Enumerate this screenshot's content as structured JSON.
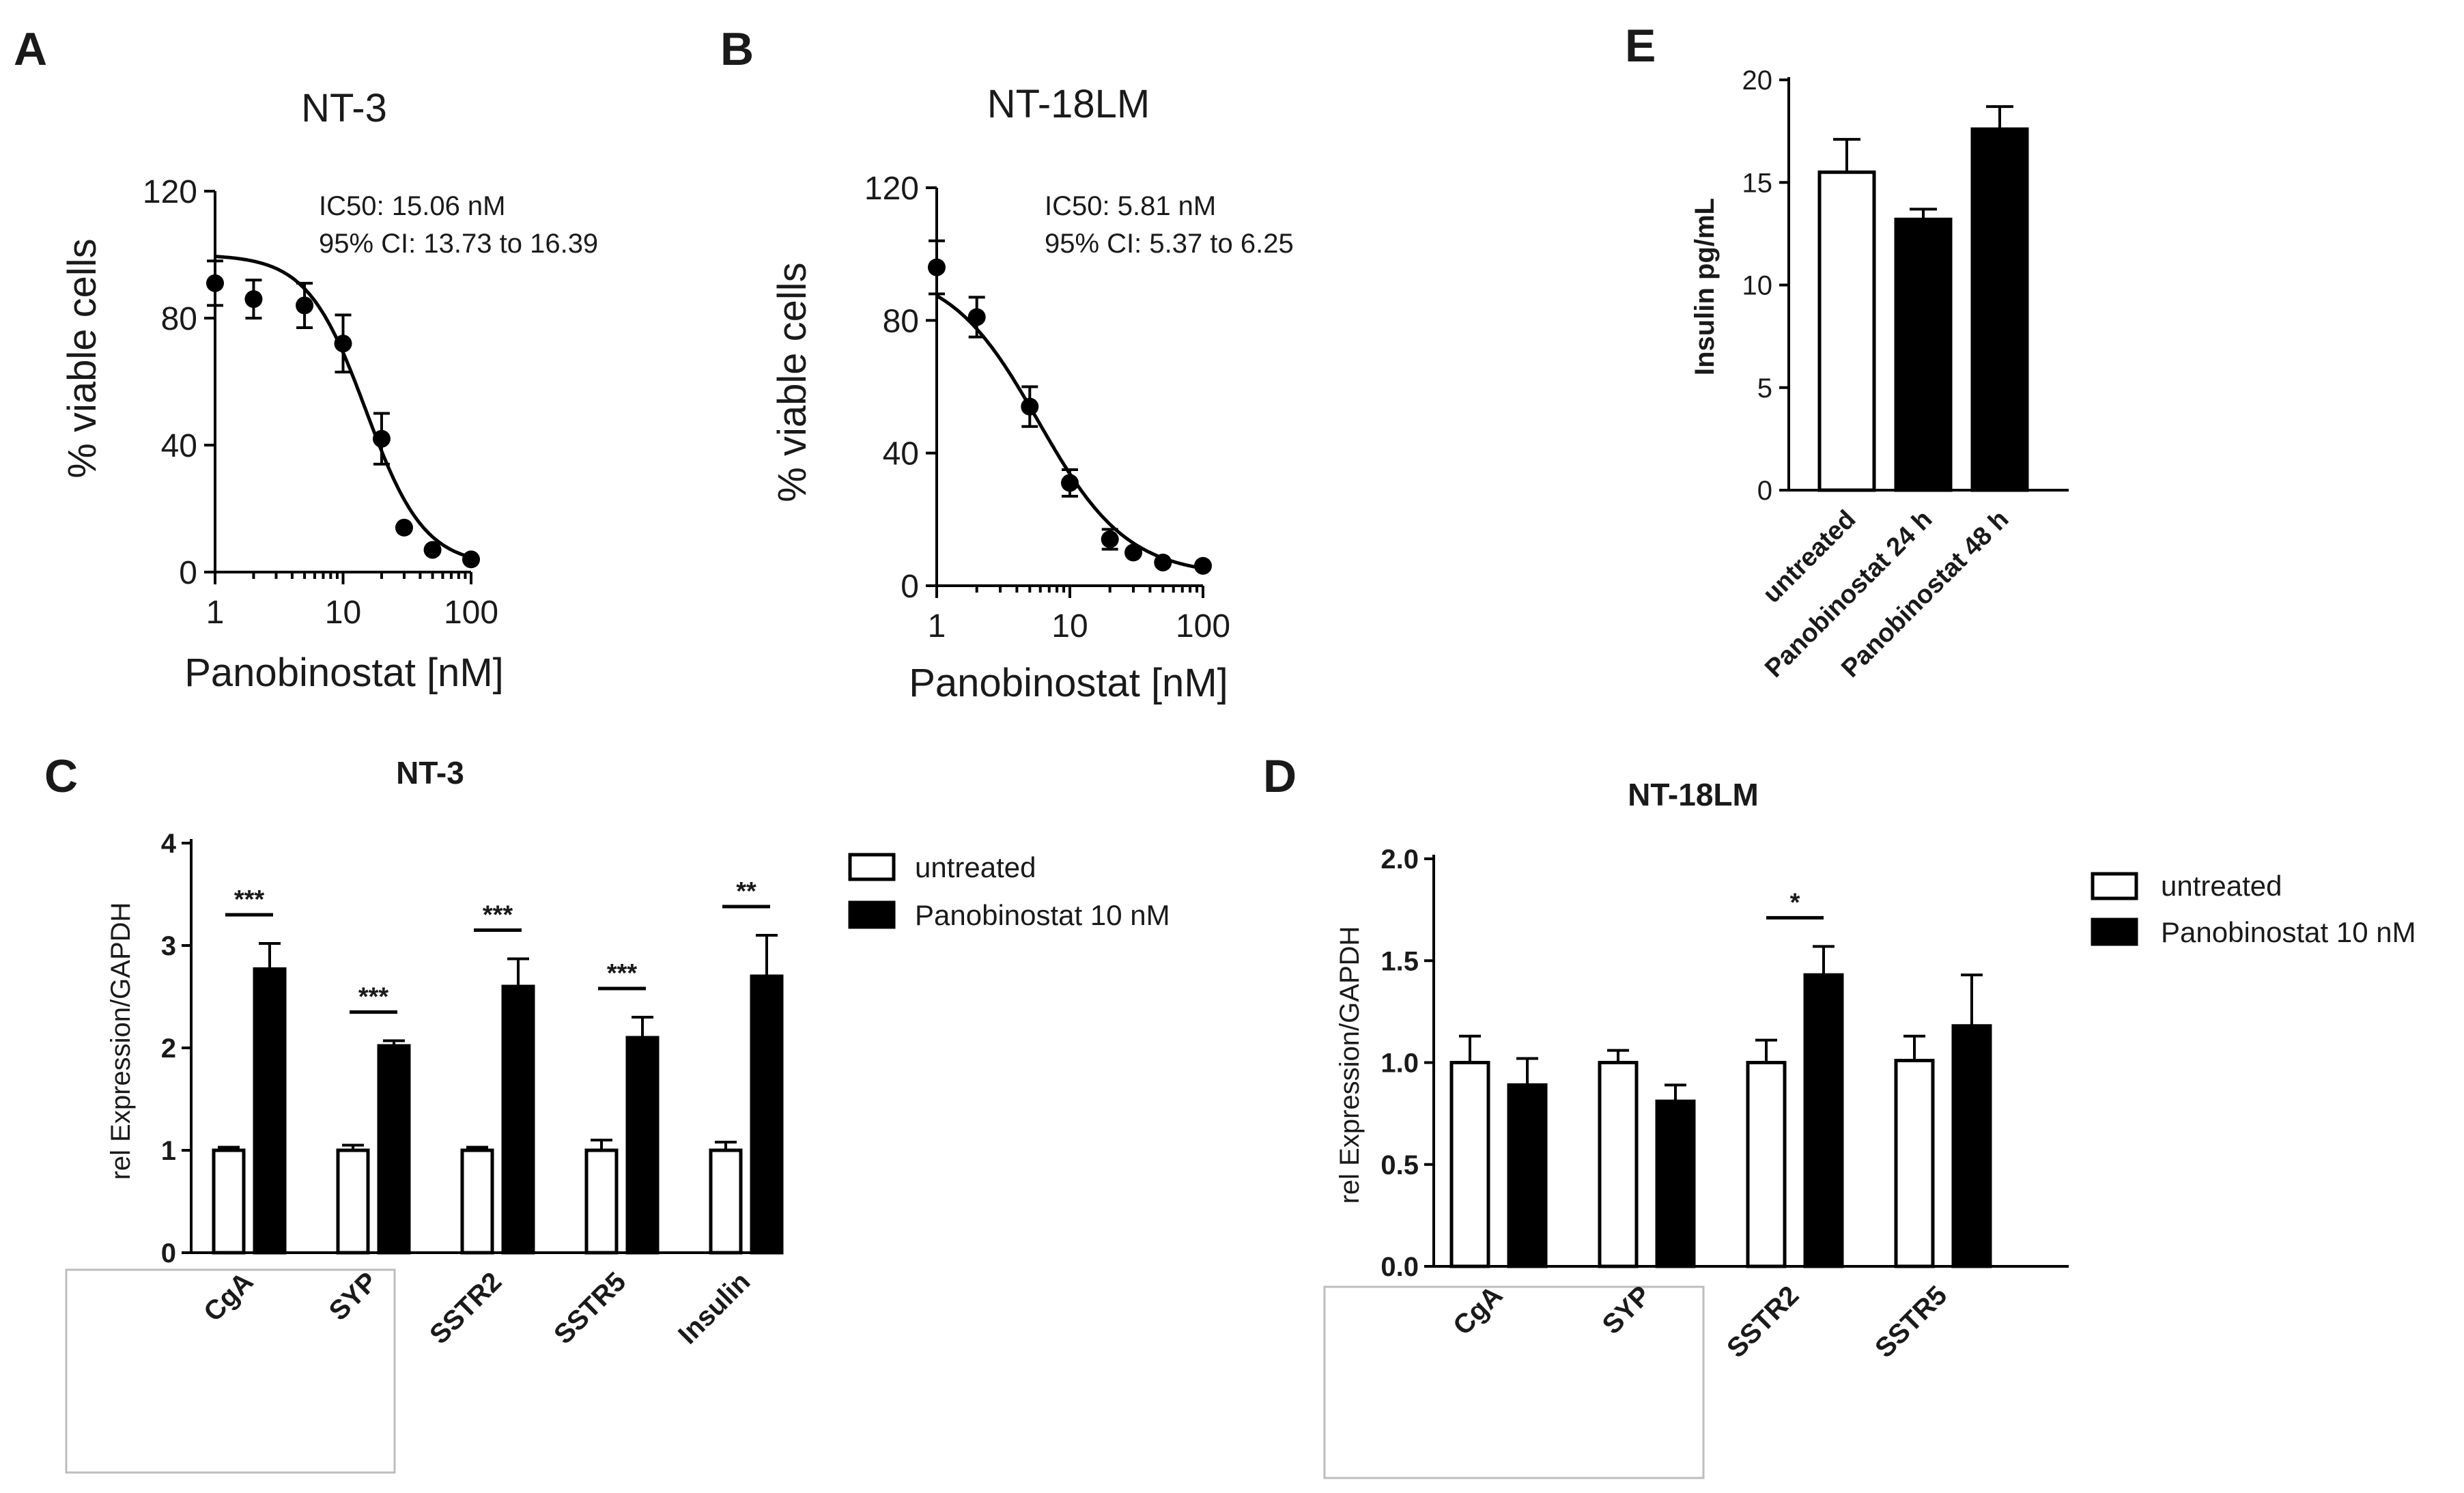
{
  "chart_data": [
    {
      "id": "A",
      "panel_label": "A",
      "type": "scatter",
      "title": "NT-3",
      "xlabel": "Panobinostat [nM]",
      "ylabel": "% viable cells",
      "xscale": "log",
      "xlim": [
        1,
        100
      ],
      "ylim": [
        0,
        120
      ],
      "xticks": [
        1,
        10,
        100
      ],
      "yticks": [
        0,
        40,
        80,
        120
      ],
      "points": [
        {
          "x": 1,
          "y": 91,
          "err": 7
        },
        {
          "x": 2,
          "y": 86,
          "err": 6
        },
        {
          "x": 5,
          "y": 84,
          "err": 7
        },
        {
          "x": 10,
          "y": 72,
          "err": 9
        },
        {
          "x": 20,
          "y": 42,
          "err": 8
        },
        {
          "x": 30,
          "y": 14,
          "err": 0
        },
        {
          "x": 50,
          "y": 7,
          "err": 0
        },
        {
          "x": 100,
          "y": 4,
          "err": 0
        }
      ],
      "fit": {
        "top": 100,
        "bottom": 2,
        "ic50": 15.06,
        "hill": 1.9
      },
      "annotations": [
        "IC50: 15.06 nM",
        "95% CI: 13.73 to 16.39"
      ]
    },
    {
      "id": "B",
      "panel_label": "B",
      "type": "scatter",
      "title": "NT-18LM",
      "xlabel": "Panobinostat [nM]",
      "ylabel": "% viable cells",
      "xscale": "log",
      "xlim": [
        1,
        100
      ],
      "ylim": [
        0,
        120
      ],
      "xticks": [
        1,
        10,
        100
      ],
      "yticks": [
        0,
        40,
        80,
        120
      ],
      "points": [
        {
          "x": 1,
          "y": 96,
          "err": 8
        },
        {
          "x": 2,
          "y": 81,
          "err": 6
        },
        {
          "x": 5,
          "y": 54,
          "err": 6
        },
        {
          "x": 10,
          "y": 31,
          "err": 4
        },
        {
          "x": 20,
          "y": 14,
          "err": 3
        },
        {
          "x": 30,
          "y": 10,
          "err": 0
        },
        {
          "x": 50,
          "y": 7,
          "err": 0
        },
        {
          "x": 100,
          "y": 6,
          "err": 0
        }
      ],
      "fit": {
        "top": 96,
        "bottom": 3,
        "ic50": 5.81,
        "hill": 1.3
      },
      "annotations": [
        "IC50: 5.81 nM",
        "95% CI: 5.37 to 6.25"
      ]
    },
    {
      "id": "C",
      "panel_label": "C",
      "type": "bar",
      "title": "NT-3",
      "xlabel": "",
      "ylabel": "rel Expression/GAPDH",
      "ylim": [
        0,
        4
      ],
      "yticks": [
        0,
        1,
        2,
        3,
        4
      ],
      "categories": [
        "CgA",
        "SYP",
        "SSTR2",
        "SSTR5",
        "Insulin"
      ],
      "series": [
        {
          "name": "untreated",
          "color": "#ffffff",
          "values": [
            1.0,
            1.0,
            1.0,
            1.0,
            1.0
          ],
          "errors": [
            0.03,
            0.05,
            0.03,
            0.1,
            0.08
          ]
        },
        {
          "name": "Panobinostat 10 nM",
          "color": "#000000",
          "values": [
            2.77,
            2.02,
            2.6,
            2.1,
            2.7
          ],
          "errors": [
            0.25,
            0.05,
            0.27,
            0.2,
            0.4
          ]
        }
      ],
      "significance": [
        {
          "category": "CgA",
          "label": "***"
        },
        {
          "category": "SYP",
          "label": "***"
        },
        {
          "category": "SSTR2",
          "label": "***"
        },
        {
          "category": "SSTR5",
          "label": "***"
        },
        {
          "category": "Insulin",
          "label": "**"
        }
      ],
      "legend": [
        "untreated",
        "Panobinostat 10 nM"
      ]
    },
    {
      "id": "D",
      "panel_label": "D",
      "type": "bar",
      "title": "NT-18LM",
      "xlabel": "",
      "ylabel": "rel Expression/GAPDH",
      "ylim": [
        0,
        2.0
      ],
      "yticks": [
        "0.0",
        "0.5",
        "1.0",
        "1.5",
        "2.0"
      ],
      "categories": [
        "CgA",
        "SYP",
        "SSTR2",
        "SSTR5"
      ],
      "series": [
        {
          "name": "untreated",
          "color": "#ffffff",
          "values": [
            1.0,
            1.0,
            1.0,
            1.01
          ],
          "errors": [
            0.13,
            0.06,
            0.11,
            0.12
          ]
        },
        {
          "name": "Panobinostat 10 nM",
          "color": "#000000",
          "values": [
            0.89,
            0.81,
            1.43,
            1.18
          ],
          "errors": [
            0.13,
            0.08,
            0.14,
            0.25
          ]
        }
      ],
      "significance": [
        {
          "category": "SSTR2",
          "label": "*"
        }
      ],
      "legend": [
        "untreated",
        "Panobinostat 10 nM"
      ]
    },
    {
      "id": "E",
      "panel_label": "E",
      "type": "bar",
      "title": "",
      "xlabel": "",
      "ylabel": "Insulin pg/mL",
      "ylim": [
        0,
        20
      ],
      "yticks": [
        0,
        5,
        10,
        15,
        20
      ],
      "categories": [
        "untreated",
        "Panobinostat 24 h",
        "Panobinostat 48 h"
      ],
      "values": [
        15.5,
        13.2,
        17.6
      ],
      "errors": [
        1.6,
        0.5,
        1.1
      ],
      "colors": [
        "#ffffff",
        "#000000",
        "#000000"
      ]
    }
  ]
}
